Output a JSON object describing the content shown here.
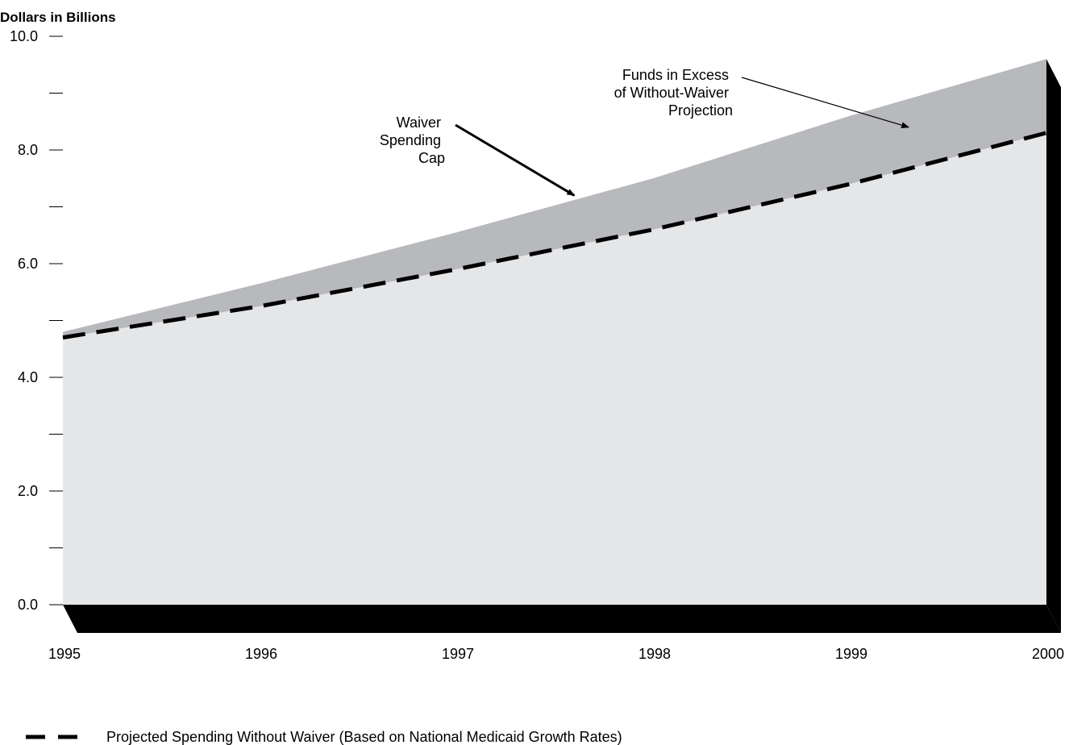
{
  "chart_data": {
    "type": "area",
    "ylabel": "Dollars in Billions",
    "xlabel": "",
    "x": [
      1995,
      1996,
      1997,
      1998,
      1999,
      2000
    ],
    "x_tick_labels": [
      "1995",
      "1996",
      "1997",
      "1998",
      "1999",
      "2000"
    ],
    "ylim": [
      0,
      10
    ],
    "y_major_ticks": [
      0,
      2,
      4,
      6,
      8,
      10
    ],
    "y_tick_labels": [
      "0.0",
      "2.0",
      "4.0",
      "6.0",
      "8.0",
      "10.0"
    ],
    "y_minor_ticks": [
      1,
      3,
      5,
      7,
      9
    ],
    "series": [
      {
        "key": "cap",
        "values": [
          4.8,
          5.65,
          6.55,
          7.5,
          8.6,
          9.6
        ],
        "color": "#b8b9bc"
      },
      {
        "key": "without",
        "values": [
          4.7,
          5.25,
          5.9,
          6.6,
          7.4,
          8.3
        ],
        "color": "#e5e6e8",
        "line": "dashed"
      }
    ],
    "annotations": [
      {
        "lines": [
          "Waiver",
          "Spending",
          "Cap"
        ],
        "x": 1997.6,
        "y": 7.2
      },
      {
        "lines": [
          "Funds in Excess",
          "of Without-Waiver",
          "Projection"
        ],
        "x": 1999.3,
        "y": 8.4
      }
    ],
    "legend": {
      "label": "Projected Spending Without Waiver (Based on National Medicaid Growth Rates)",
      "position": "bottom-left"
    },
    "grid": false
  }
}
